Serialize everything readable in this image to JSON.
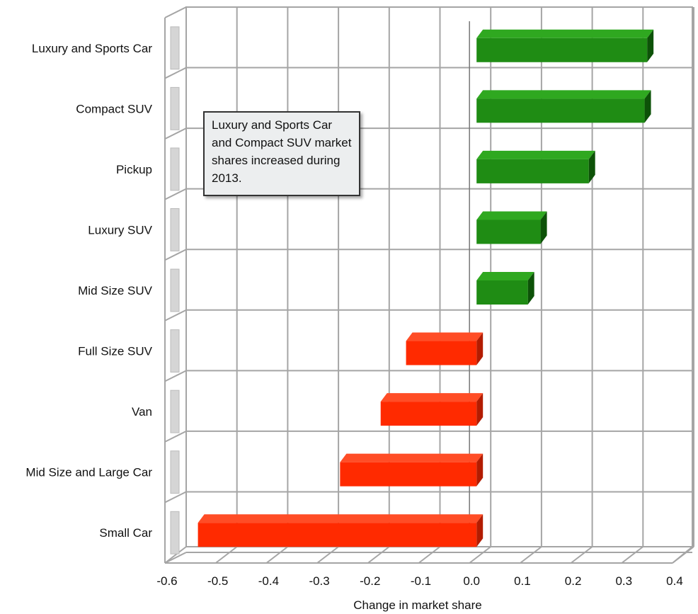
{
  "chart_data": {
    "type": "bar",
    "orientation": "horizontal",
    "categories": [
      "Luxury and Sports Car",
      "Compact SUV",
      "Pickup",
      "Luxury SUV",
      "Mid Size SUV",
      "Full Size SUV",
      "Van",
      "Mid Size and Large Car",
      "Small Car"
    ],
    "values": [
      0.35,
      0.345,
      0.235,
      0.14,
      0.115,
      -0.125,
      -0.175,
      -0.255,
      -0.535
    ],
    "xlabel": "Change in market share",
    "ylabel": "",
    "xlim": [
      -0.6,
      0.4
    ],
    "xticks": [
      "-0.6",
      "-0.5",
      "-0.4",
      "-0.3",
      "-0.2",
      "-0.1",
      "0.0",
      "0.1",
      "0.2",
      "0.3",
      "0.4"
    ],
    "grid": true,
    "colors": {
      "positive": "#1f8c14",
      "negative": "#ff2a00"
    },
    "annotation": "Luxury and Sports Car and Compact SUV market shares increased during 2013."
  }
}
